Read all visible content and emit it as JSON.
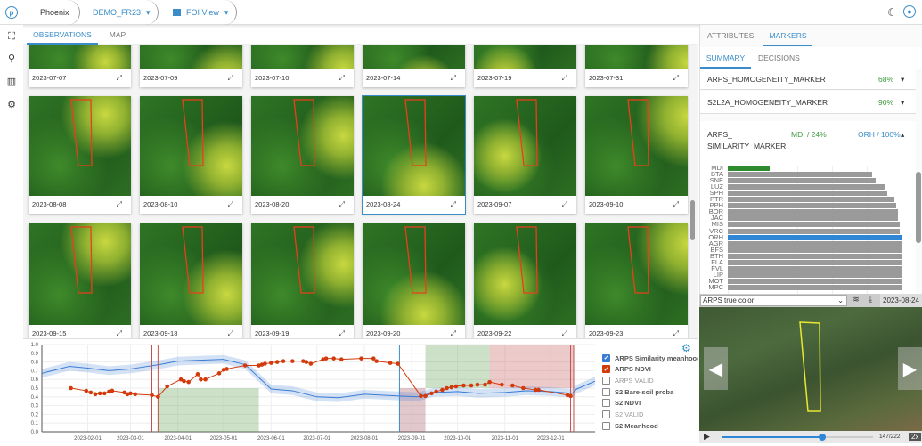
{
  "header": {
    "logo": "p",
    "app": "Phoenix",
    "project": "DEMO_FR23",
    "view": "FOI View",
    "icons": [
      "moon-icon",
      "account-icon"
    ]
  },
  "leftbar": [
    "focus-icon",
    "search-icon",
    "map-icon",
    "settings-icon"
  ],
  "tabs": [
    "OBSERVATIONS",
    "MAP"
  ],
  "observations": [
    [
      "2023-07-07",
      "2023-07-09",
      "2023-07-10",
      "2023-07-14",
      "2023-07-19",
      "2023-07-31"
    ],
    [
      "2023-08-08",
      "2023-08-10",
      "2023-08-20",
      "2023-08-24",
      "2023-09-07",
      "2023-09-10"
    ],
    [
      "2023-09-15",
      "2023-09-18",
      "2023-09-19",
      "2023-09-20",
      "2023-09-22",
      "2023-09-23"
    ]
  ],
  "selected_observation": "2023-08-24",
  "right": {
    "tabs": [
      "ATTRIBUTES",
      "MARKERS"
    ],
    "subtabs": [
      "SUMMARY",
      "DECISIONS"
    ],
    "markers": [
      {
        "name": "ARPS_HOMOGENEITY_MARKER",
        "value": "68%"
      },
      {
        "name": "S2L2A_HOMOGENEITY_MARKER",
        "value": "90%"
      }
    ],
    "similarity": {
      "name_1": "ARPS_",
      "name_2": "SIMILARITY_MARKER",
      "mdi": "MDI / 24%",
      "orh": "ORH / 100%"
    },
    "bars": {
      "labels": [
        "MDI",
        "BTA",
        "SNE",
        "LUZ",
        "SPH",
        "PTR",
        "PPH",
        "BOR",
        "JAC",
        "MIS",
        "VRC",
        "ORH",
        "AGR",
        "BFS",
        "BTH",
        "FLA",
        "FVL",
        "LIP",
        "MOT",
        "MPC"
      ],
      "values": [
        0.24,
        0.83,
        0.85,
        0.91,
        0.92,
        0.96,
        0.97,
        0.98,
        0.98,
        0.99,
        0.99,
        1,
        1,
        1,
        1,
        1,
        1,
        1,
        1,
        1
      ],
      "colors": {
        "MDI": "#2e8b2e",
        "ORH": "#2f86d6",
        "default": "#9a9a9a"
      }
    },
    "image_select": "ARPS true color",
    "image_date": "2023-08-24",
    "player": {
      "frame": "147/222",
      "progress": 0.662,
      "speed": "2x"
    }
  },
  "legend": [
    {
      "label": "ARPS Similarity meanhood",
      "checked": true,
      "color": "#3a7bd5"
    },
    {
      "label": "ARPS NDVI",
      "checked": true,
      "color": "#d23a0c"
    },
    {
      "label": "ARPS VALID",
      "checked": false,
      "color": "#888"
    },
    {
      "label": "S2 Bare-soil proba",
      "checked": false,
      "color": "#555"
    },
    {
      "label": "S2 NDVI",
      "checked": false,
      "color": "#555"
    },
    {
      "label": "S2 VALID",
      "checked": false,
      "color": "#888"
    },
    {
      "label": "S2 Meanhood",
      "checked": false,
      "color": "#555"
    }
  ],
  "chart_data": {
    "type": "line",
    "ylim": [
      0,
      1
    ],
    "xlim": [
      "2023-01-02",
      "2023-12-30"
    ],
    "yticks": [
      "0.0",
      "0.1",
      "0.2",
      "0.3",
      "0.4",
      "0.5",
      "0.6",
      "0.7",
      "0.8",
      "0.9",
      "1.0"
    ],
    "xticks": [
      "2023-02-01",
      "2023-03-01",
      "2023-04-01",
      "2023-05-01",
      "2023-06-01",
      "2023-07-01",
      "2023-08-01",
      "2023-09-01",
      "2023-10-01",
      "2023-11-01",
      "2023-12-01"
    ],
    "series": [
      {
        "name": "ARPS Similarity meanhood",
        "color": "#3a7bd5",
        "band": 0.05,
        "x": [
          "2023-01-02",
          "2023-01-20",
          "2023-02-01",
          "2023-02-15",
          "2023-03-01",
          "2023-03-20",
          "2023-04-01",
          "2023-04-15",
          "2023-05-01",
          "2023-05-15",
          "2023-06-01",
          "2023-06-15",
          "2023-07-01",
          "2023-07-15",
          "2023-08-01",
          "2023-08-24",
          "2023-09-05",
          "2023-09-15",
          "2023-10-01",
          "2023-10-15",
          "2023-11-01",
          "2023-11-15",
          "2023-12-01",
          "2023-12-15",
          "2023-12-18",
          "2023-12-30"
        ],
        "y": [
          0.67,
          0.75,
          0.73,
          0.7,
          0.72,
          0.77,
          0.81,
          0.82,
          0.83,
          0.77,
          0.49,
          0.47,
          0.4,
          0.39,
          0.43,
          0.41,
          0.4,
          0.45,
          0.46,
          0.44,
          0.45,
          0.47,
          0.46,
          0.44,
          0.49,
          0.58
        ]
      },
      {
        "name": "ARPS NDVI",
        "color": "#d23a0c",
        "x": [
          "2023-01-21",
          "2023-01-31",
          "2023-02-03",
          "2023-02-06",
          "2023-02-09",
          "2023-02-12",
          "2023-02-15",
          "2023-02-17",
          "2023-02-25",
          "2023-02-27",
          "2023-03-01",
          "2023-03-04",
          "2023-03-15",
          "2023-03-19",
          "2023-03-25",
          "2023-04-03",
          "2023-04-05",
          "2023-04-08",
          "2023-04-14",
          "2023-04-16",
          "2023-04-19",
          "2023-04-28",
          "2023-05-01",
          "2023-05-03",
          "2023-05-15",
          "2023-05-24",
          "2023-05-26",
          "2023-05-28",
          "2023-06-01",
          "2023-06-05",
          "2023-06-09",
          "2023-06-15",
          "2023-06-22",
          "2023-06-24",
          "2023-06-27",
          "2023-07-05",
          "2023-07-07",
          "2023-07-12",
          "2023-07-17",
          "2023-07-30",
          "2023-08-07",
          "2023-08-09",
          "2023-08-18",
          "2023-08-23",
          "2023-09-07",
          "2023-09-10",
          "2023-09-14",
          "2023-09-17",
          "2023-09-21",
          "2023-09-24",
          "2023-09-27",
          "2023-09-30",
          "2023-10-05",
          "2023-10-10",
          "2023-10-14",
          "2023-10-19",
          "2023-10-22",
          "2023-10-30",
          "2023-11-06",
          "2023-11-13",
          "2023-11-21",
          "2023-11-23",
          "2023-12-12",
          "2023-12-14"
        ],
        "y": [
          0.5,
          0.47,
          0.45,
          0.43,
          0.44,
          0.44,
          0.46,
          0.47,
          0.45,
          0.43,
          0.44,
          0.43,
          0.42,
          0.4,
          0.52,
          0.6,
          0.58,
          0.57,
          0.66,
          0.6,
          0.6,
          0.67,
          0.71,
          0.72,
          0.76,
          0.76,
          0.77,
          0.78,
          0.79,
          0.8,
          0.81,
          0.81,
          0.81,
          0.8,
          0.78,
          0.83,
          0.84,
          0.84,
          0.83,
          0.84,
          0.84,
          0.81,
          0.79,
          0.78,
          0.41,
          0.41,
          0.44,
          0.46,
          0.48,
          0.5,
          0.51,
          0.52,
          0.53,
          0.53,
          0.54,
          0.54,
          0.57,
          0.54,
          0.53,
          0.5,
          0.48,
          0.48,
          0.42,
          0.41
        ]
      }
    ],
    "regions": [
      {
        "from": "2023-03-19",
        "to": "2023-05-24",
        "ymin": 0,
        "ymax": 0.5,
        "color": "#5a9a4a"
      },
      {
        "from": "2023-08-24",
        "to": "2023-09-10",
        "ymin": 0,
        "ymax": 0.5,
        "color": "#9a4a55"
      },
      {
        "from": "2023-09-10",
        "to": "2023-10-22",
        "ymin": 0.5,
        "ymax": 1,
        "color": "#5a9a4a"
      },
      {
        "from": "2023-10-22",
        "to": "2023-12-16",
        "ymin": 0.5,
        "ymax": 1,
        "color": "#c25050"
      }
    ],
    "vlines": [
      {
        "x": "2023-03-15",
        "color": "#c0504d"
      },
      {
        "x": "2023-03-19",
        "color": "#c0504d"
      },
      {
        "x": "2023-08-24",
        "color": "#3a8dc9"
      },
      {
        "x": "2023-12-14",
        "color": "#c0504d"
      },
      {
        "x": "2023-12-16",
        "color": "#c0504d"
      }
    ],
    "grid": true,
    "legend": "right"
  }
}
